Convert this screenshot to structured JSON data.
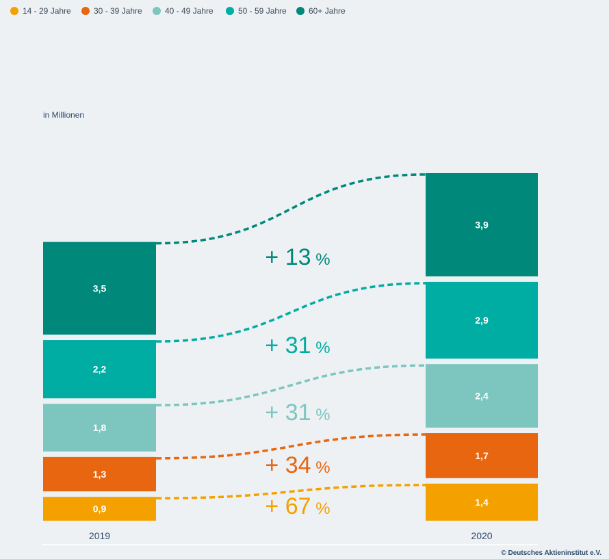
{
  "chart_data": {
    "type": "bar",
    "unit_label": "in Millionen",
    "categories": [
      "2019",
      "2020"
    ],
    "series": [
      {
        "name": "14 - 29 Jahre",
        "values": [
          0.9,
          1.4
        ],
        "labels": [
          "0,9",
          "1,4"
        ],
        "color": "#f4a100",
        "change": "67"
      },
      {
        "name": "30 - 39 Jahre",
        "values": [
          1.3,
          1.7
        ],
        "labels": [
          "1,3",
          "1,7"
        ],
        "color": "#e8660f",
        "change": "34"
      },
      {
        "name": "40 - 49 Jahre",
        "values": [
          1.8,
          2.4
        ],
        "labels": [
          "1,8",
          "2,4"
        ],
        "color": "#7cc6bf",
        "change": "31"
      },
      {
        "name": "50 - 59 Jahre",
        "values": [
          2.2,
          2.9
        ],
        "labels": [
          "2,2",
          "2,9"
        ],
        "color": "#00ada3",
        "change": "31"
      },
      {
        "name": "60+ Jahre",
        "values": [
          3.5,
          3.9
        ],
        "labels": [
          "3,5",
          "3,9"
        ],
        "color": "#00897b",
        "change": "13"
      }
    ],
    "legend_position": "top-left",
    "stacked": true,
    "grid": false
  },
  "copyright": "© Deutsches Aktieninstitut e.V."
}
